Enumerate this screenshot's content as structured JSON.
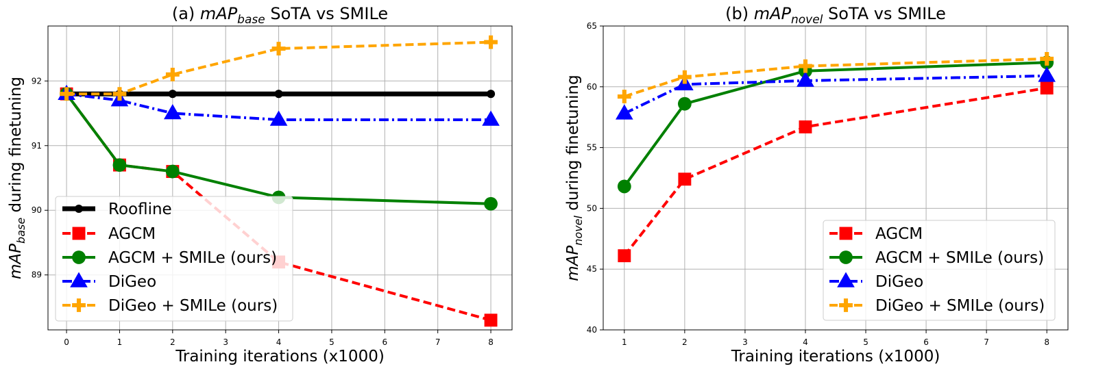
{
  "chart_data": [
    {
      "type": "line",
      "panel": "a",
      "title_prefix": "(a) ",
      "title_math": "mAP",
      "title_sub": "base",
      "title_suffix": " SoTA vs SMILe",
      "xlabel": "Training iterations (x1000)",
      "ylabel_math": "mAP",
      "ylabel_sub": "base",
      "ylabel_suffix": " during finetuning",
      "xlim": [
        -0.35,
        8.4
      ],
      "ylim": [
        88.15,
        92.85
      ],
      "xticks": [
        0,
        1,
        2,
        3,
        4,
        5,
        6,
        7,
        8
      ],
      "yticks": [
        89,
        90,
        91,
        92
      ],
      "grid": true,
      "legend_position": "lower-left",
      "series": [
        {
          "name": "Roofline",
          "color": "#000000",
          "style": "solid",
          "marker": "circle",
          "x": [
            0,
            1,
            2,
            4,
            8
          ],
          "y": [
            91.8,
            91.8,
            91.8,
            91.8,
            91.8
          ]
        },
        {
          "name": "AGCM",
          "color": "#ff0000",
          "style": "dashed",
          "marker": "square",
          "x": [
            0,
            1,
            2,
            4,
            8
          ],
          "y": [
            91.8,
            90.7,
            90.6,
            89.2,
            88.3
          ]
        },
        {
          "name": "AGCM + SMILe (ours)",
          "color": "#008000",
          "style": "solid",
          "marker": "circle",
          "x": [
            0,
            1,
            2,
            4,
            8
          ],
          "y": [
            91.8,
            90.7,
            90.6,
            90.2,
            90.1
          ]
        },
        {
          "name": "DiGeo",
          "color": "#0000ff",
          "style": "dashdot",
          "marker": "triangle",
          "x": [
            0,
            1,
            2,
            4,
            8
          ],
          "y": [
            91.8,
            91.7,
            91.5,
            91.4,
            91.4
          ]
        },
        {
          "name": "DiGeo + SMILe (ours)",
          "color": "#ffa500",
          "style": "dashed",
          "marker": "plus",
          "x": [
            0,
            1,
            2,
            4,
            8
          ],
          "y": [
            91.8,
            91.8,
            92.1,
            92.5,
            92.6
          ]
        }
      ]
    },
    {
      "type": "line",
      "panel": "b",
      "title_prefix": "(b) ",
      "title_math": "mAP",
      "title_sub": "novel",
      "title_suffix": " SoTA vs SMILe",
      "xlabel": "Training iterations (x1000)",
      "ylabel_math": "mAP",
      "ylabel_sub": "novel",
      "ylabel_suffix": " during finetuning",
      "xlim": [
        0.65,
        8.35
      ],
      "ylim": [
        40,
        65
      ],
      "xticks": [
        1,
        2,
        3,
        4,
        5,
        6,
        7,
        8
      ],
      "yticks": [
        40,
        45,
        50,
        55,
        60,
        65
      ],
      "grid": true,
      "legend_position": "lower-right",
      "series": [
        {
          "name": "AGCM",
          "color": "#ff0000",
          "style": "dashed",
          "marker": "square",
          "x": [
            1,
            2,
            4,
            8
          ],
          "y": [
            46.1,
            52.4,
            56.7,
            59.9
          ]
        },
        {
          "name": "AGCM + SMILe (ours)",
          "color": "#008000",
          "style": "solid",
          "marker": "circle",
          "x": [
            1,
            2,
            4,
            8
          ],
          "y": [
            51.8,
            58.6,
            61.3,
            62.0
          ]
        },
        {
          "name": "DiGeo",
          "color": "#0000ff",
          "style": "dashdot",
          "marker": "triangle",
          "x": [
            1,
            2,
            4,
            8
          ],
          "y": [
            57.8,
            60.2,
            60.5,
            60.9
          ]
        },
        {
          "name": "DiGeo + SMILe (ours)",
          "color": "#ffa500",
          "style": "dashed",
          "marker": "plus",
          "x": [
            1,
            2,
            4,
            8
          ],
          "y": [
            59.2,
            60.8,
            61.7,
            62.3
          ]
        }
      ]
    }
  ]
}
